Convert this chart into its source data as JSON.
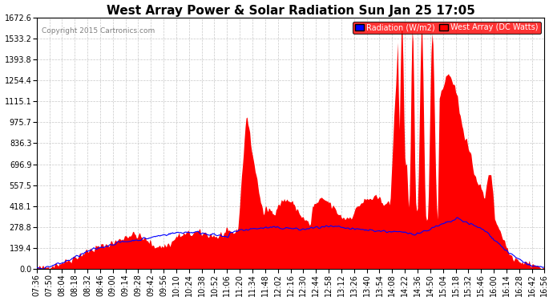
{
  "title": "West Array Power & Solar Radiation Sun Jan 25 17:05",
  "copyright": "Copyright 2015 Cartronics.com",
  "legend_radiation": "Radiation (W/m2)",
  "legend_west": "West Array (DC Watts)",
  "yticks": [
    0.0,
    139.4,
    278.8,
    418.1,
    557.5,
    696.9,
    836.3,
    975.7,
    1115.1,
    1254.4,
    1393.8,
    1533.2,
    1672.6
  ],
  "ymax": 1672.6,
  "background_color": "#ffffff",
  "plot_bg_color": "#ffffff",
  "grid_color": "#c8c8c8",
  "red_color": "#ff0000",
  "blue_color": "#0000ff",
  "title_fontsize": 11,
  "tick_fontsize": 7,
  "xtick_labels": [
    "07:36",
    "07:50",
    "08:04",
    "08:18",
    "08:32",
    "08:46",
    "09:00",
    "09:14",
    "09:28",
    "09:42",
    "09:56",
    "10:10",
    "10:24",
    "10:38",
    "10:52",
    "11:06",
    "11:20",
    "11:34",
    "11:48",
    "12:02",
    "12:16",
    "12:30",
    "12:44",
    "12:58",
    "13:12",
    "13:26",
    "13:40",
    "13:54",
    "14:08",
    "14:22",
    "14:36",
    "14:50",
    "15:04",
    "15:18",
    "15:32",
    "15:46",
    "16:00",
    "16:14",
    "16:28",
    "16:42",
    "16:56"
  ]
}
